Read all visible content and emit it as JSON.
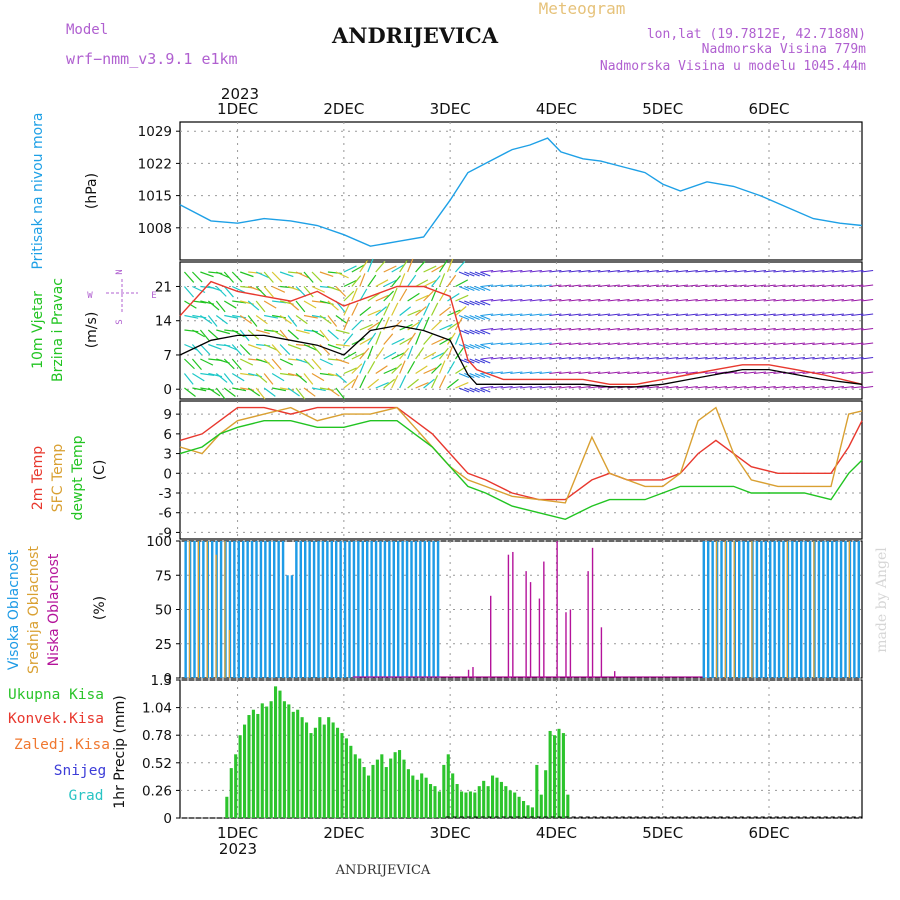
{
  "header": {
    "model_label": "Model",
    "model_name": "wrf−nmm_v3.9.1  e1km",
    "station": "ANDRIJEVICA",
    "meteogram": "Meteogram",
    "lonlat": "lon,lat (19.7812E, 42.7188N)",
    "altitude": "Nadmorska Visina 779m",
    "model_altitude": "Nadmorska Visina u modelu 1045.44m",
    "credit": "made by Angel",
    "footer": "ANDRIJEVICA"
  },
  "time_axis": {
    "year": "2023",
    "ticks": [
      "1DEC",
      "2DEC",
      "3DEC",
      "4DEC",
      "5DEC",
      "6DEC"
    ],
    "range_hours": [
      -13,
      141
    ]
  },
  "colors": {
    "pressure": "#1ea0e6",
    "gust": "#e8382e",
    "wind_speed": "#000000",
    "temp2m": "#e8382e",
    "sfc_temp": "#d9a032",
    "dewpoint": "#22c422",
    "cloud_high": "#1e9be6",
    "cloud_mid": "#d9a032",
    "cloud_low": "#b4139a",
    "precip_total": "#2cc42c",
    "precip_conv": "#e8382e",
    "precip_frz": "#f07830",
    "precip_snow": "#3d3dd8",
    "precip_hail": "#2ac4c4",
    "wind_legend": "#b060d0"
  },
  "chart_data": [
    {
      "type": "line",
      "panel": "pressure",
      "ylabel_left": "Pritisak na nivou mora",
      "ylabel_unit": "(hPa)",
      "yticks": [
        1008,
        1015,
        1022,
        1029
      ],
      "ylim": [
        1001,
        1031
      ],
      "x": [
        -13,
        -6,
        0,
        6,
        12,
        18,
        24,
        30,
        36,
        42,
        48,
        52,
        56,
        62,
        66,
        70,
        73,
        78,
        82,
        88,
        92,
        96,
        100,
        106,
        112,
        118,
        124,
        130,
        136,
        141
      ],
      "y": [
        1013,
        1009.5,
        1009,
        1010,
        1009.5,
        1008.5,
        1006.5,
        1004,
        1005,
        1006,
        1014,
        1020,
        1022,
        1025,
        1026,
        1027.5,
        1024.5,
        1023,
        1022.5,
        1021,
        1020,
        1017.5,
        1016,
        1018,
        1017,
        1015,
        1012.5,
        1010,
        1009,
        1008.5
      ]
    },
    {
      "type": "line",
      "panel": "wind",
      "ylabel_left": [
        "10m Vjetar",
        "Brzina i Pravac"
      ],
      "ylabel_unit": "(m/s)",
      "compass": [
        "N",
        "S",
        "E",
        "W"
      ],
      "yticks": [
        0,
        7,
        14,
        21
      ],
      "ylim": [
        -2,
        26
      ],
      "series": [
        {
          "name": "gust",
          "x": [
            -13,
            -6,
            0,
            6,
            12,
            18,
            24,
            30,
            36,
            42,
            48,
            52,
            54,
            60,
            66,
            72,
            78,
            84,
            90,
            96,
            102,
            108,
            114,
            120,
            126,
            132,
            141
          ],
          "y": [
            15,
            22,
            20,
            19,
            18,
            20,
            17,
            19,
            21,
            21,
            19,
            6,
            4,
            2,
            2,
            2,
            2,
            1,
            1,
            2,
            3,
            4,
            5,
            5,
            4,
            3,
            1
          ]
        },
        {
          "name": "speed",
          "x": [
            -13,
            -6,
            0,
            6,
            12,
            18,
            24,
            30,
            36,
            42,
            48,
            52,
            54,
            60,
            66,
            72,
            78,
            84,
            90,
            96,
            102,
            108,
            114,
            120,
            126,
            132,
            141
          ],
          "y": [
            7,
            10,
            11,
            11,
            10,
            9,
            7,
            12,
            13,
            12,
            10,
            3,
            1,
            1,
            1,
            1,
            1,
            0.5,
            0.5,
            1,
            2,
            3,
            4,
            4,
            3,
            2,
            1
          ]
        }
      ]
    },
    {
      "type": "line",
      "panel": "temperature",
      "ylabel_left": [
        "2m Temp",
        "SFC Temp",
        "dewpt Temp"
      ],
      "ylabel_unit": "(C)",
      "yticks": [
        -9,
        -6,
        -3,
        0,
        3,
        6,
        9
      ],
      "ylim": [
        -10,
        11
      ],
      "x": [
        -13,
        -8,
        -4,
        0,
        6,
        12,
        18,
        24,
        30,
        36,
        40,
        44,
        48,
        52,
        56,
        62,
        68,
        74,
        80,
        84,
        88,
        92,
        96,
        100,
        104,
        108,
        112,
        116,
        122,
        128,
        134,
        138,
        141
      ],
      "series": [
        {
          "name": "2m",
          "y": [
            5,
            6,
            8,
            10,
            10,
            9,
            10,
            10,
            10,
            10,
            8,
            6,
            3,
            0,
            -1,
            -3,
            -4,
            -4,
            -1,
            0,
            -1,
            -1,
            -1,
            0,
            3,
            5,
            3,
            1,
            0,
            0,
            0,
            4,
            8
          ]
        },
        {
          "name": "sfc",
          "y": [
            4,
            3,
            6,
            8,
            9,
            10,
            8,
            9,
            9,
            10,
            7,
            4,
            1,
            -1,
            -2,
            -3.5,
            -4,
            -4.5,
            5.5,
            0,
            -1,
            -2,
            -2,
            0,
            8,
            10,
            3,
            -1,
            -2,
            -2,
            -2,
            9,
            9.5
          ]
        },
        {
          "name": "dewpt",
          "y": [
            3,
            4,
            6,
            7,
            8,
            8,
            7,
            7,
            8,
            8,
            6,
            4,
            1,
            -2,
            -3,
            -5,
            -6,
            -7,
            -5,
            -4,
            -4,
            -4,
            -3,
            -2,
            -2,
            -2,
            -2,
            -3,
            -3,
            -3,
            -4,
            0,
            2
          ]
        }
      ]
    },
    {
      "type": "bar",
      "panel": "clouds",
      "ylabel_left": [
        "Visoka Oblacnost",
        "Srednja Oblacnost",
        "Niska Oblacnost"
      ],
      "ylabel_unit": "(%)",
      "yticks": [
        0,
        25,
        50,
        75,
        100
      ],
      "ylim": [
        0,
        100
      ],
      "high_segments": [
        [
          -12,
          11,
          100
        ],
        [
          11,
          13,
          75
        ],
        [
          13,
          27,
          100
        ],
        [
          27,
          33,
          100
        ],
        [
          33,
          46,
          100
        ],
        [
          105,
          141,
          100
        ]
      ],
      "high_gaps": [
        [
          0,
          4
        ],
        [
          4,
          12
        ],
        [
          26,
          32
        ],
        [
          35,
          48
        ]
      ],
      "low_spikes": [
        [
          48,
          52,
          0.5
        ],
        [
          52,
          6
        ],
        [
          53,
          8
        ],
        [
          57,
          60
        ],
        [
          61,
          90
        ],
        [
          62,
          92
        ],
        [
          65,
          78
        ],
        [
          66,
          70
        ],
        [
          68,
          58
        ],
        [
          69,
          85
        ],
        [
          72,
          100
        ],
        [
          74,
          48
        ],
        [
          75,
          50
        ],
        [
          79,
          78
        ],
        [
          80,
          95
        ],
        [
          82,
          37
        ],
        [
          85,
          5
        ]
      ]
    },
    {
      "type": "bar",
      "panel": "precip",
      "ylabel_left": [
        "Ukupna Kisa",
        "Konvek.Kisa",
        "Zaledj.Kisa",
        "Snijeg",
        "Grad"
      ],
      "ylabel_unit": "1hr Precip (mm)",
      "yticks": [
        0,
        0.26,
        0.52,
        0.78,
        1.04,
        1.3
      ],
      "ylim": [
        0,
        1.3
      ],
      "x_start": -3,
      "values": [
        0.2,
        0.47,
        0.6,
        0.78,
        0.88,
        0.97,
        1.02,
        0.98,
        1.08,
        1.05,
        1.1,
        1.24,
        1.2,
        1.1,
        1.07,
        1.0,
        1.02,
        0.95,
        0.9,
        0.8,
        0.85,
        0.95,
        0.88,
        0.95,
        0.9,
        0.85,
        0.8,
        0.75,
        0.68,
        0.6,
        0.56,
        0.48,
        0.4,
        0.5,
        0.55,
        0.6,
        0.48,
        0.56,
        0.62,
        0.64,
        0.55,
        0.46,
        0.4,
        0.36,
        0.42,
        0.38,
        0.32,
        0.3,
        0.25,
        0.5,
        0.6,
        0.42,
        0.32,
        0.25,
        0.24,
        0.25,
        0.24,
        0.3,
        0.35,
        0.3,
        0.4,
        0.38,
        0.34,
        0.3,
        0.26,
        0.24,
        0.2,
        0.16,
        0.12,
        0.1,
        0.5,
        0.22,
        0.45,
        0.82,
        0.78,
        0.84,
        0.8,
        0.22,
        0.0,
        0.0
      ]
    }
  ]
}
